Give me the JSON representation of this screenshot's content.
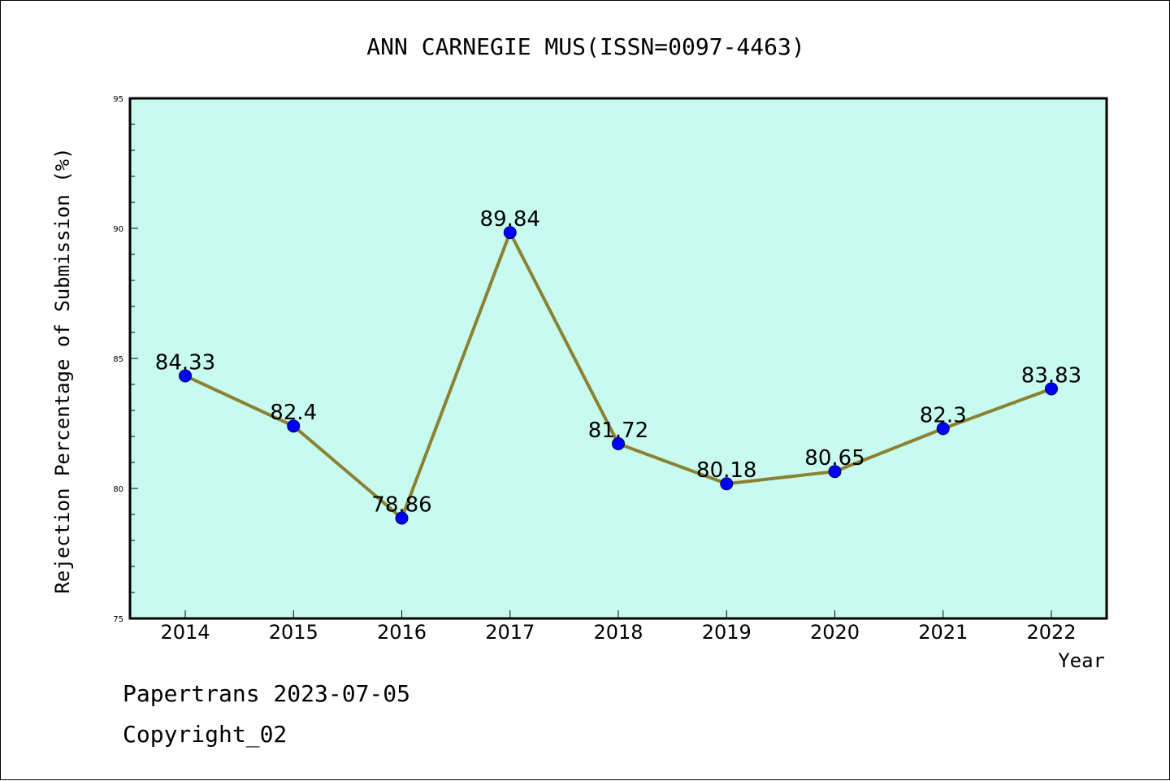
{
  "chart_data": {
    "type": "line",
    "title": "ANN CARNEGIE MUS(ISSN=0097-4463)",
    "xlabel": "Year",
    "ylabel": "Rejection Percentage of Submission (%)",
    "x": [
      "2014",
      "2015",
      "2016",
      "2017",
      "2018",
      "2019",
      "2020",
      "2021",
      "2022"
    ],
    "series": [
      {
        "values": [
          84.33,
          82.4,
          78.86,
          89.84,
          81.72,
          80.18,
          80.65,
          82.3,
          83.83
        ],
        "labels": [
          "84.33",
          "82.4",
          "78.86",
          "89.84",
          "81.72",
          "80.18",
          "80.65",
          "82.3",
          "83.83"
        ]
      }
    ],
    "ylim": [
      75,
      95
    ],
    "yticks": [
      75,
      80,
      85,
      90,
      95
    ],
    "ytick_labels": [
      "75",
      "80",
      "85",
      "90",
      "95"
    ],
    "grid": false,
    "colors": {
      "plot_background": "#c8fbef",
      "line": "#8b8132",
      "marker": "#0000ff",
      "axis": "#000000"
    }
  },
  "footer": {
    "line1": "Papertrans 2023-07-05",
    "line2": "Copyright_02"
  }
}
